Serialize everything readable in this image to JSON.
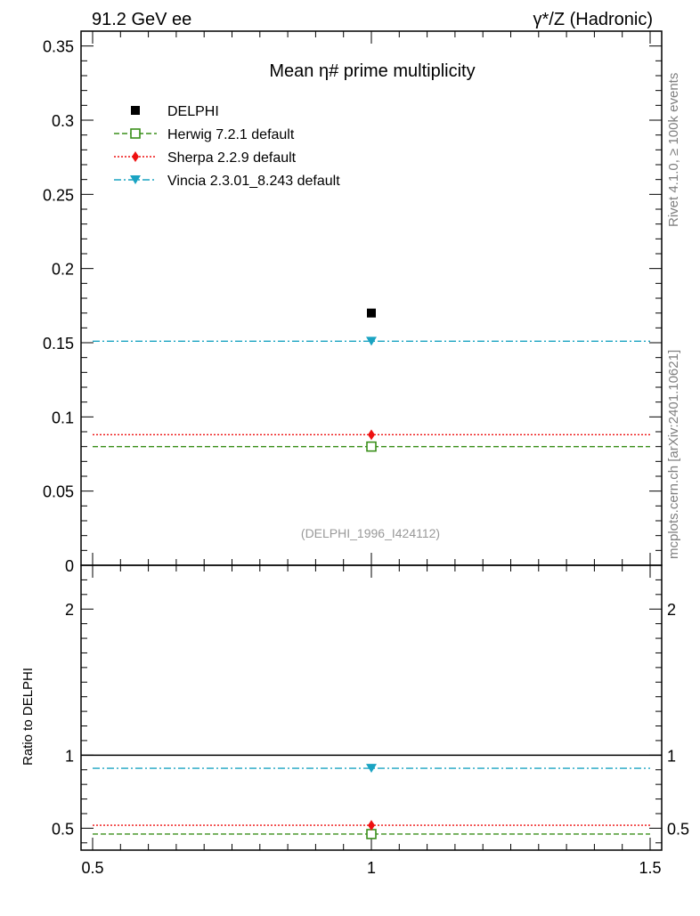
{
  "header": {
    "left": "91.2 GeV ee",
    "right": "γ*/Z (Hadronic)"
  },
  "side_labels": {
    "rivet": "Rivet 4.1.0, ≥ 100k events",
    "source": "mcplots.cern.ch [arXiv:2401.10621]"
  },
  "colors": {
    "data": "#000000",
    "herwig": "#3a8f1a",
    "sherpa": "#ee1111",
    "vincia": "#1aa3c2",
    "watermark": "#999999"
  },
  "chart_data": [
    {
      "type": "scatter",
      "panel": "main",
      "title": "Mean η# prime multiplicity",
      "watermark": "(DELPHI_1996_I424112)",
      "xlim": [
        0.5,
        1.5
      ],
      "ylim": [
        0,
        0.36
      ],
      "yticks": [
        {
          "value": 0,
          "label": "0"
        },
        {
          "value": 0.05,
          "label": "0.05"
        },
        {
          "value": 0.1,
          "label": "0.1"
        },
        {
          "value": 0.15,
          "label": "0.15"
        },
        {
          "value": 0.2,
          "label": "0.2"
        },
        {
          "value": 0.25,
          "label": "0.25"
        },
        {
          "value": 0.3,
          "label": "0.3"
        },
        {
          "value": 0.35,
          "label": "0.35"
        }
      ],
      "legend_position": "top-left",
      "series": [
        {
          "key": "data",
          "name": "DELPHI",
          "marker": "square-filled",
          "x": [
            1
          ],
          "values": [
            0.17
          ]
        },
        {
          "key": "herwig",
          "name": "Herwig 7.2.1 default",
          "marker": "square-open",
          "line": "dashed",
          "x": [
            1
          ],
          "values": [
            0.08
          ]
        },
        {
          "key": "sherpa",
          "name": "Sherpa 2.2.9 default",
          "marker": "diamond",
          "line": "dotted",
          "x": [
            1
          ],
          "values": [
            0.088
          ]
        },
        {
          "key": "vincia",
          "name": "Vincia 2.3.01_8.243 default",
          "marker": "triangle-down",
          "line": "dashdot",
          "x": [
            1
          ],
          "values": [
            0.151
          ]
        }
      ]
    },
    {
      "type": "scatter",
      "panel": "ratio",
      "ylabel": "Ratio to DELPHI",
      "xlim": [
        0.5,
        1.5
      ],
      "ylim": [
        0.35,
        2.3
      ],
      "reference_line": 1,
      "xticks": [
        {
          "value": 0.5,
          "label": "0.5"
        },
        {
          "value": 1,
          "label": "1"
        },
        {
          "value": 1.5,
          "label": "1.5"
        }
      ],
      "yticks": [
        {
          "value": 0.5,
          "label": "0.5"
        },
        {
          "value": 1,
          "label": "1"
        },
        {
          "value": 2,
          "label": "2"
        }
      ],
      "series": [
        {
          "key": "herwig",
          "name": "Herwig 7.2.1 default",
          "marker": "square-open",
          "line": "dashed",
          "x": [
            1
          ],
          "values": [
            0.46
          ]
        },
        {
          "key": "sherpa",
          "name": "Sherpa 2.2.9 default",
          "marker": "diamond",
          "line": "dotted",
          "x": [
            1
          ],
          "values": [
            0.52
          ]
        },
        {
          "key": "vincia",
          "name": "Vincia 2.3.01_8.243 default",
          "marker": "triangle-down",
          "line": "dashdot",
          "x": [
            1
          ],
          "values": [
            0.91
          ]
        }
      ]
    }
  ]
}
